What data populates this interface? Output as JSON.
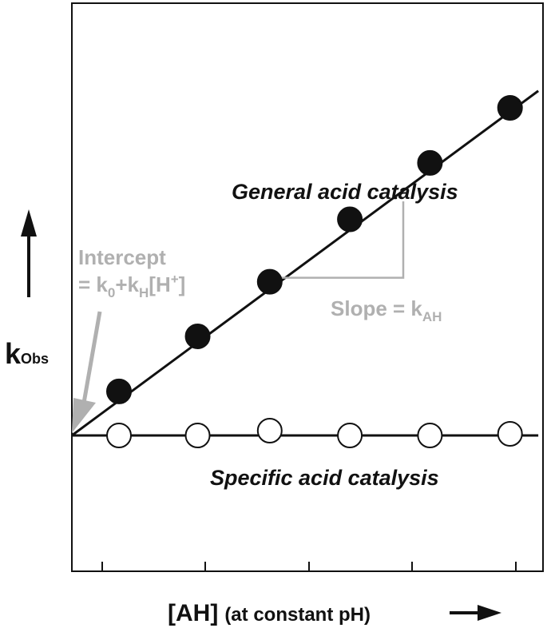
{
  "chart_data": {
    "type": "scatter",
    "xlabel_main": "[AH]",
    "xlabel_note": "(at constant pH)",
    "ylabel_main": "k",
    "ylabel_sub": "Obs",
    "xlim": [
      0,
      10
    ],
    "ylim": [
      0,
      10
    ],
    "grid": false,
    "series": [
      {
        "name": "General acid catalysis",
        "marker": "filled-circle",
        "x": [
          1.0,
          2.67,
          4.2,
          5.9,
          7.6,
          9.3
        ],
        "y": [
          1.08,
          2.28,
          3.47,
          4.83,
          6.06,
          7.26
        ]
      },
      {
        "name": "Specific acid catalysis",
        "marker": "open-circle",
        "x": [
          1.0,
          2.67,
          4.2,
          5.9,
          7.6,
          9.3
        ],
        "y": [
          0.12,
          0.12,
          0.12,
          0.12,
          0.12,
          0.12
        ]
      }
    ],
    "lines": [
      {
        "name": "general-fit",
        "x": [
          0,
          9.9
        ],
        "y": [
          0.12,
          7.63
        ]
      },
      {
        "name": "specific-fit",
        "x": [
          0,
          9.9
        ],
        "y": [
          0.12,
          0.12
        ]
      }
    ],
    "annotations": {
      "intercept_line1": "Intercept",
      "intercept_eq": "= k",
      "intercept_sub0": "0",
      "intercept_plus": "+k",
      "intercept_subH": "H",
      "intercept_bracket": "[H",
      "intercept_sup": "+",
      "intercept_close": "]",
      "slope_text": "Slope = k",
      "slope_sub": "AH"
    },
    "colors": {
      "axis": "#111111",
      "annotation": "#b0b0b0",
      "marker_fill": "#111111",
      "open_fill": "#ffffff"
    }
  }
}
